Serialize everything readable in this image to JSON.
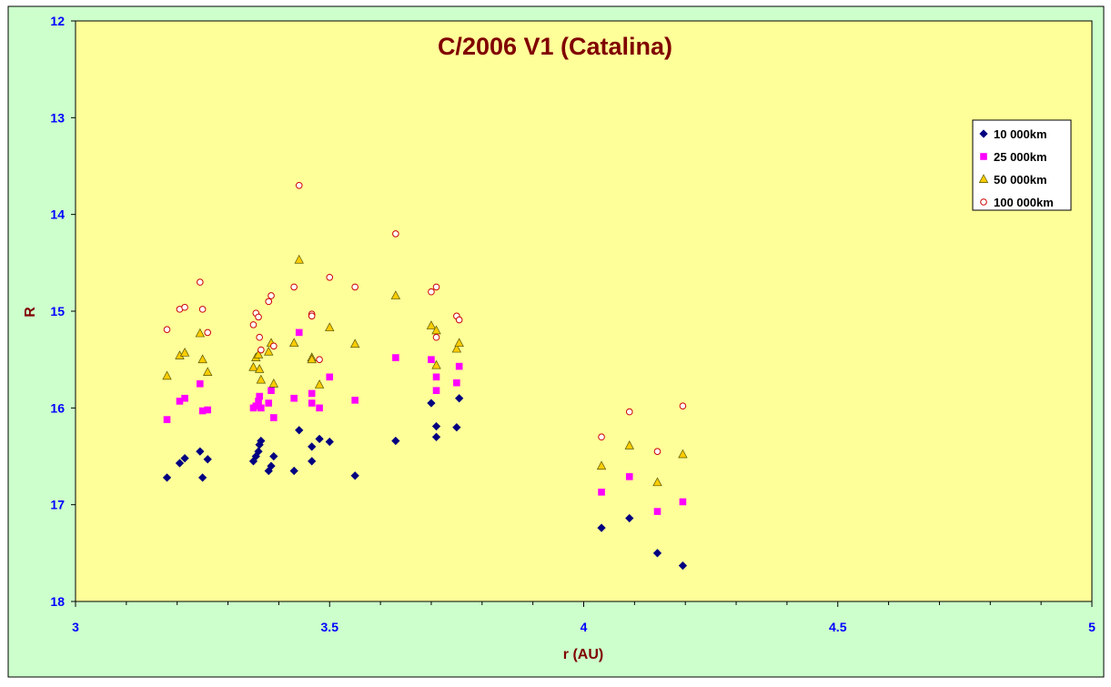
{
  "chart_data": {
    "type": "scatter",
    "title": "C/2006 V1 (Catalina)",
    "xlabel": "r (AU)",
    "ylabel": "R",
    "xlim": [
      3,
      5
    ],
    "ylim": [
      12,
      18
    ],
    "y_inverted": true,
    "x_major_ticks": [
      3,
      3.5,
      4,
      4.5,
      5
    ],
    "x_tick_labels": [
      "3",
      "3.5",
      "4",
      "4.5",
      "5"
    ],
    "x_minor_step": 0.1,
    "y_ticks": [
      12,
      13,
      14,
      15,
      16,
      17,
      18
    ],
    "y_tick_labels": [
      "12",
      "13",
      "14",
      "15",
      "16",
      "17",
      "18"
    ],
    "grid": false,
    "legend_position": "right",
    "colors": {
      "frame_background": "#ccffcc",
      "plot_background": "#ffff99",
      "title": "#800000",
      "axis_labels": "#800000",
      "tick_labels": "#0000ff",
      "axis_lines": "#000000"
    },
    "series": [
      {
        "name": "10 000km",
        "marker": "diamond",
        "color": "#000080",
        "points": [
          [
            3.18,
            16.72
          ],
          [
            3.205,
            16.57
          ],
          [
            3.215,
            16.52
          ],
          [
            3.245,
            16.45
          ],
          [
            3.25,
            16.72
          ],
          [
            3.26,
            16.53
          ],
          [
            3.35,
            16.55
          ],
          [
            3.355,
            16.5
          ],
          [
            3.36,
            16.45
          ],
          [
            3.362,
            16.38
          ],
          [
            3.365,
            16.34
          ],
          [
            3.38,
            16.65
          ],
          [
            3.385,
            16.6
          ],
          [
            3.39,
            16.5
          ],
          [
            3.43,
            16.65
          ],
          [
            3.44,
            16.23
          ],
          [
            3.465,
            16.4
          ],
          [
            3.465,
            16.55
          ],
          [
            3.48,
            16.32
          ],
          [
            3.5,
            16.35
          ],
          [
            3.55,
            16.7
          ],
          [
            3.63,
            16.34
          ],
          [
            3.7,
            15.95
          ],
          [
            3.71,
            16.19
          ],
          [
            3.71,
            16.3
          ],
          [
            3.75,
            16.2
          ],
          [
            3.755,
            15.9
          ],
          [
            4.035,
            17.24
          ],
          [
            4.09,
            17.14
          ],
          [
            4.145,
            17.5
          ],
          [
            4.195,
            17.63
          ]
        ]
      },
      {
        "name": "25 000km",
        "marker": "square",
        "color": "#ff00ff",
        "points": [
          [
            3.18,
            16.12
          ],
          [
            3.205,
            15.93
          ],
          [
            3.215,
            15.9
          ],
          [
            3.245,
            15.75
          ],
          [
            3.25,
            16.03
          ],
          [
            3.26,
            16.02
          ],
          [
            3.35,
            16.0
          ],
          [
            3.355,
            15.98
          ],
          [
            3.36,
            15.93
          ],
          [
            3.362,
            15.88
          ],
          [
            3.365,
            16.0
          ],
          [
            3.38,
            15.95
          ],
          [
            3.385,
            15.82
          ],
          [
            3.39,
            16.1
          ],
          [
            3.43,
            15.9
          ],
          [
            3.44,
            15.22
          ],
          [
            3.465,
            15.85
          ],
          [
            3.465,
            15.95
          ],
          [
            3.48,
            16.0
          ],
          [
            3.5,
            15.68
          ],
          [
            3.55,
            15.92
          ],
          [
            3.63,
            15.48
          ],
          [
            3.7,
            15.5
          ],
          [
            3.71,
            15.68
          ],
          [
            3.71,
            15.82
          ],
          [
            3.75,
            15.74
          ],
          [
            3.755,
            15.57
          ],
          [
            4.035,
            16.87
          ],
          [
            4.09,
            16.71
          ],
          [
            4.145,
            17.07
          ],
          [
            4.195,
            16.97
          ]
        ]
      },
      {
        "name": "50 000km",
        "marker": "triangle",
        "color": "#ffcc00",
        "points": [
          [
            3.18,
            15.67
          ],
          [
            3.205,
            15.46
          ],
          [
            3.215,
            15.43
          ],
          [
            3.245,
            15.23
          ],
          [
            3.25,
            15.5
          ],
          [
            3.26,
            15.63
          ],
          [
            3.35,
            15.58
          ],
          [
            3.355,
            15.48
          ],
          [
            3.36,
            15.45
          ],
          [
            3.362,
            15.6
          ],
          [
            3.365,
            15.71
          ],
          [
            3.38,
            15.42
          ],
          [
            3.385,
            15.33
          ],
          [
            3.39,
            15.75
          ],
          [
            3.43,
            15.33
          ],
          [
            3.44,
            14.47
          ],
          [
            3.465,
            15.48
          ],
          [
            3.465,
            15.5
          ],
          [
            3.48,
            15.76
          ],
          [
            3.5,
            15.17
          ],
          [
            3.55,
            15.34
          ],
          [
            3.63,
            14.84
          ],
          [
            3.7,
            15.15
          ],
          [
            3.71,
            15.2
          ],
          [
            3.71,
            15.56
          ],
          [
            3.75,
            15.39
          ],
          [
            3.755,
            15.33
          ],
          [
            4.035,
            16.6
          ],
          [
            4.09,
            16.39
          ],
          [
            4.145,
            16.77
          ],
          [
            4.195,
            16.48
          ]
        ]
      },
      {
        "name": "100 000km",
        "marker": "circle",
        "color": "#cc0000",
        "points": [
          [
            3.18,
            15.19
          ],
          [
            3.205,
            14.98
          ],
          [
            3.215,
            14.96
          ],
          [
            3.245,
            14.7
          ],
          [
            3.25,
            14.98
          ],
          [
            3.26,
            15.22
          ],
          [
            3.35,
            15.14
          ],
          [
            3.355,
            15.02
          ],
          [
            3.36,
            15.06
          ],
          [
            3.362,
            15.27
          ],
          [
            3.365,
            15.4
          ],
          [
            3.38,
            14.9
          ],
          [
            3.385,
            14.84
          ],
          [
            3.39,
            15.36
          ],
          [
            3.43,
            14.75
          ],
          [
            3.44,
            13.7
          ],
          [
            3.465,
            15.03
          ],
          [
            3.465,
            15.05
          ],
          [
            3.48,
            15.5
          ],
          [
            3.5,
            14.65
          ],
          [
            3.55,
            14.75
          ],
          [
            3.63,
            14.2
          ],
          [
            3.7,
            14.8
          ],
          [
            3.71,
            14.75
          ],
          [
            3.71,
            15.27
          ],
          [
            3.75,
            15.05
          ],
          [
            3.755,
            15.09
          ],
          [
            4.035,
            16.3
          ],
          [
            4.09,
            16.04
          ],
          [
            4.145,
            16.45
          ],
          [
            4.195,
            15.98
          ]
        ]
      }
    ]
  }
}
